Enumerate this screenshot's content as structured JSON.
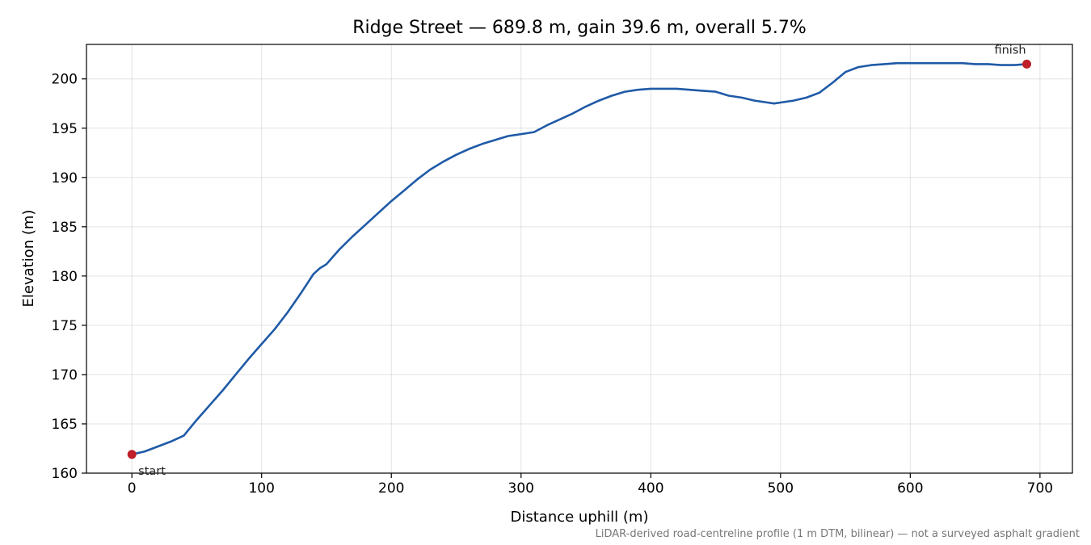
{
  "chart_data": {
    "type": "line",
    "title": "Ridge Street — 689.8 m, gain 39.6 m, overall 5.7%",
    "xlabel": "Distance uphill (m)",
    "ylabel": "Elevation (m)",
    "xlim": [
      -35,
      725
    ],
    "ylim": [
      160,
      203.5
    ],
    "xticks": [
      0,
      100,
      200,
      300,
      400,
      500,
      600,
      700
    ],
    "yticks": [
      160,
      165,
      170,
      175,
      180,
      185,
      190,
      195,
      200
    ],
    "grid": true,
    "line_color": "#1f5aa6",
    "marker_color": "#c0202a",
    "series": [
      {
        "x": [
          0,
          10,
          20,
          30,
          40,
          50,
          60,
          70,
          80,
          90,
          100,
          110,
          120,
          130,
          140,
          145,
          150,
          160,
          170,
          180,
          190,
          200,
          210,
          220,
          230,
          240,
          250,
          260,
          270,
          280,
          290,
          300,
          310,
          320,
          330,
          340,
          350,
          360,
          370,
          380,
          390,
          400,
          410,
          420,
          430,
          440,
          450,
          460,
          470,
          480,
          490,
          495,
          500,
          510,
          520,
          530,
          540,
          550,
          560,
          570,
          580,
          590,
          600,
          610,
          620,
          630,
          640,
          650,
          660,
          670,
          680,
          689.8
        ],
        "y": [
          161.9,
          162.2,
          162.7,
          163.2,
          163.8,
          165.4,
          166.9,
          168.4,
          170.0,
          171.6,
          173.1,
          174.6,
          176.3,
          178.2,
          180.2,
          180.8,
          181.2,
          182.7,
          184.0,
          185.2,
          186.4,
          187.6,
          188.7,
          189.8,
          190.8,
          191.6,
          192.3,
          192.9,
          193.4,
          193.8,
          194.2,
          194.4,
          194.6,
          195.3,
          195.9,
          196.5,
          197.2,
          197.8,
          198.3,
          198.7,
          198.9,
          199.0,
          199.0,
          199.0,
          198.9,
          198.8,
          198.7,
          198.3,
          198.1,
          197.8,
          197.6,
          197.5,
          197.6,
          197.8,
          198.1,
          198.6,
          199.6,
          200.7,
          201.2,
          201.4,
          201.5,
          201.6,
          201.6,
          201.6,
          201.6,
          201.6,
          201.6,
          201.5,
          201.5,
          201.4,
          201.4,
          201.5
        ]
      }
    ],
    "annotations": [
      {
        "label": "start",
        "x": 0,
        "y": 161.9
      },
      {
        "label": "finish",
        "x": 689.8,
        "y": 201.5
      }
    ],
    "footnote": "LiDAR-derived road-centreline profile (1 m DTM, bilinear) — not a surveyed asphalt gradient"
  }
}
